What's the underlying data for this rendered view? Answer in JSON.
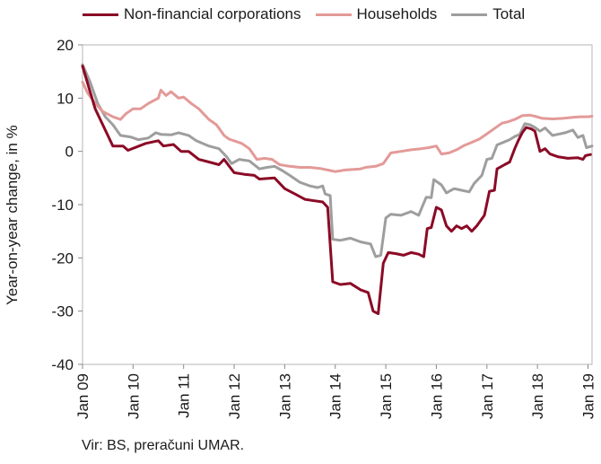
{
  "chart_data": {
    "type": "line",
    "title": "",
    "xlabel": "",
    "ylabel": "Year-on-year change, in %",
    "ylim": [
      -40,
      20
    ],
    "yticks": [
      20,
      10,
      0,
      -10,
      -20,
      -30,
      -40
    ],
    "xlim": [
      2009.0,
      2019.08
    ],
    "xtick_labels": [
      "Jan 09",
      "Jan 10",
      "Jan 11",
      "Jan 12",
      "Jan 13",
      "Jan 14",
      "Jan 15",
      "Jan 16",
      "Jan 17",
      "Jan 18",
      "Jan 19"
    ],
    "xtick_values": [
      2009,
      2010,
      2011,
      2012,
      2013,
      2014,
      2015,
      2016,
      2017,
      2018,
      2019
    ],
    "grid": false,
    "legend_position": "top",
    "series": [
      {
        "name": "Non-financial corporations",
        "color": "#8b0a26",
        "points": [
          [
            2009.0,
            16
          ],
          [
            2009.25,
            8
          ],
          [
            2009.5,
            3
          ],
          [
            2009.6,
            1
          ],
          [
            2009.8,
            1
          ],
          [
            2009.9,
            0.2
          ],
          [
            2010.25,
            1.5
          ],
          [
            2010.5,
            2
          ],
          [
            2010.6,
            1
          ],
          [
            2010.8,
            1.3
          ],
          [
            2010.95,
            0
          ],
          [
            2011.1,
            0
          ],
          [
            2011.3,
            -1.5
          ],
          [
            2011.5,
            -2
          ],
          [
            2011.7,
            -2.5
          ],
          [
            2011.8,
            -1.5
          ],
          [
            2012.0,
            -4
          ],
          [
            2012.2,
            -4.3
          ],
          [
            2012.4,
            -4.5
          ],
          [
            2012.5,
            -5.2
          ],
          [
            2012.8,
            -5
          ],
          [
            2012.9,
            -6
          ],
          [
            2013.0,
            -7
          ],
          [
            2013.2,
            -8
          ],
          [
            2013.4,
            -9
          ],
          [
            2013.6,
            -9.3
          ],
          [
            2013.75,
            -9.5
          ],
          [
            2013.85,
            -10.5
          ],
          [
            2013.95,
            -24.5
          ],
          [
            2014.1,
            -25
          ],
          [
            2014.3,
            -24.8
          ],
          [
            2014.5,
            -26
          ],
          [
            2014.65,
            -26.5
          ],
          [
            2014.75,
            -30
          ],
          [
            2014.85,
            -30.5
          ],
          [
            2014.95,
            -21
          ],
          [
            2015.05,
            -19
          ],
          [
            2015.2,
            -19.2
          ],
          [
            2015.35,
            -19.5
          ],
          [
            2015.5,
            -19
          ],
          [
            2015.65,
            -19.3
          ],
          [
            2015.75,
            -19.8
          ],
          [
            2015.82,
            -14.5
          ],
          [
            2015.9,
            -14.3
          ],
          [
            2016.0,
            -10.5
          ],
          [
            2016.1,
            -11
          ],
          [
            2016.2,
            -14
          ],
          [
            2016.3,
            -15
          ],
          [
            2016.4,
            -14
          ],
          [
            2016.5,
            -14.5
          ],
          [
            2016.6,
            -14
          ],
          [
            2016.7,
            -15
          ],
          [
            2016.8,
            -14
          ],
          [
            2016.95,
            -12
          ],
          [
            2017.05,
            -7.5
          ],
          [
            2017.15,
            -7.3
          ],
          [
            2017.2,
            -3.3
          ],
          [
            2017.35,
            -2.5
          ],
          [
            2017.45,
            -2
          ],
          [
            2017.55,
            0.5
          ],
          [
            2017.62,
            2
          ],
          [
            2017.7,
            3.5
          ],
          [
            2017.78,
            4.5
          ],
          [
            2017.88,
            4.2
          ],
          [
            2017.95,
            3.8
          ],
          [
            2018.05,
            0
          ],
          [
            2018.15,
            0.5
          ],
          [
            2018.25,
            -0.5
          ],
          [
            2018.4,
            -1
          ],
          [
            2018.6,
            -1.3
          ],
          [
            2018.8,
            -1.2
          ],
          [
            2018.9,
            -1.5
          ],
          [
            2018.95,
            -0.8
          ],
          [
            2019.05,
            -0.6
          ]
        ]
      },
      {
        "name": "Households",
        "color": "#e39a98",
        "points": [
          [
            2009.0,
            13
          ],
          [
            2009.1,
            11
          ],
          [
            2009.25,
            9
          ],
          [
            2009.4,
            7.5
          ],
          [
            2009.6,
            6.5
          ],
          [
            2009.75,
            6
          ],
          [
            2009.85,
            7
          ],
          [
            2010.0,
            8
          ],
          [
            2010.15,
            8
          ],
          [
            2010.3,
            9
          ],
          [
            2010.5,
            10
          ],
          [
            2010.55,
            11.5
          ],
          [
            2010.65,
            10.5
          ],
          [
            2010.75,
            11.2
          ],
          [
            2010.9,
            10
          ],
          [
            2011.0,
            10.2
          ],
          [
            2011.15,
            9
          ],
          [
            2011.3,
            8
          ],
          [
            2011.5,
            6
          ],
          [
            2011.65,
            5
          ],
          [
            2011.8,
            3
          ],
          [
            2011.9,
            2.3
          ],
          [
            2012.15,
            1.5
          ],
          [
            2012.3,
            0.5
          ],
          [
            2012.45,
            -1.5
          ],
          [
            2012.6,
            -1.3
          ],
          [
            2012.75,
            -1.5
          ],
          [
            2012.9,
            -2.5
          ],
          [
            2013.1,
            -2.8
          ],
          [
            2013.3,
            -3
          ],
          [
            2013.5,
            -3
          ],
          [
            2013.7,
            -3.2
          ],
          [
            2013.9,
            -3.6
          ],
          [
            2014.0,
            -3.8
          ],
          [
            2014.2,
            -3.5
          ],
          [
            2014.5,
            -3.3
          ],
          [
            2014.6,
            -3
          ],
          [
            2014.8,
            -2.8
          ],
          [
            2014.95,
            -2.3
          ],
          [
            2015.1,
            -0.3
          ],
          [
            2015.3,
            0
          ],
          [
            2015.5,
            0.3
          ],
          [
            2015.7,
            0.5
          ],
          [
            2015.85,
            0.7
          ],
          [
            2016.0,
            1
          ],
          [
            2016.1,
            -0.5
          ],
          [
            2016.25,
            -0.3
          ],
          [
            2016.4,
            0.3
          ],
          [
            2016.55,
            1.1
          ],
          [
            2016.7,
            1.7
          ],
          [
            2016.85,
            2.3
          ],
          [
            2017.0,
            3.3
          ],
          [
            2017.15,
            4.3
          ],
          [
            2017.3,
            5.3
          ],
          [
            2017.4,
            5.5
          ],
          [
            2017.55,
            6
          ],
          [
            2017.7,
            6.7
          ],
          [
            2017.85,
            6.8
          ],
          [
            2017.95,
            6.6
          ],
          [
            2018.1,
            6.2
          ],
          [
            2018.3,
            6.1
          ],
          [
            2018.5,
            6.2
          ],
          [
            2018.7,
            6.4
          ],
          [
            2018.85,
            6.5
          ],
          [
            2019.0,
            6.5
          ],
          [
            2019.08,
            6.6
          ]
        ]
      },
      {
        "name": "Total",
        "color": "#9e9e9e",
        "points": [
          [
            2009.0,
            16.3
          ],
          [
            2009.15,
            13
          ],
          [
            2009.3,
            9
          ],
          [
            2009.45,
            6.5
          ],
          [
            2009.6,
            5
          ],
          [
            2009.75,
            3
          ],
          [
            2009.95,
            2.7
          ],
          [
            2010.1,
            2.2
          ],
          [
            2010.3,
            2.5
          ],
          [
            2010.45,
            3.5
          ],
          [
            2010.55,
            3.2
          ],
          [
            2010.75,
            3.1
          ],
          [
            2010.9,
            3.5
          ],
          [
            2011.1,
            3
          ],
          [
            2011.25,
            2
          ],
          [
            2011.5,
            1
          ],
          [
            2011.7,
            0.5
          ],
          [
            2011.85,
            -1
          ],
          [
            2011.95,
            -2.3
          ],
          [
            2012.1,
            -1.5
          ],
          [
            2012.3,
            -1.8
          ],
          [
            2012.5,
            -3.3
          ],
          [
            2012.65,
            -3
          ],
          [
            2012.8,
            -2.8
          ],
          [
            2012.95,
            -3.6
          ],
          [
            2013.1,
            -4.5
          ],
          [
            2013.3,
            -5.8
          ],
          [
            2013.5,
            -6.5
          ],
          [
            2013.65,
            -6.8
          ],
          [
            2013.75,
            -6.5
          ],
          [
            2013.8,
            -8
          ],
          [
            2013.9,
            -8.3
          ],
          [
            2013.95,
            -16.5
          ],
          [
            2014.1,
            -16.7
          ],
          [
            2014.3,
            -16.3
          ],
          [
            2014.5,
            -17
          ],
          [
            2014.7,
            -17.4
          ],
          [
            2014.8,
            -19.8
          ],
          [
            2014.9,
            -19.5
          ],
          [
            2015.0,
            -12.5
          ],
          [
            2015.1,
            -11.8
          ],
          [
            2015.3,
            -12
          ],
          [
            2015.5,
            -11.3
          ],
          [
            2015.65,
            -12
          ],
          [
            2015.8,
            -8.6
          ],
          [
            2015.9,
            -8.7
          ],
          [
            2015.95,
            -5.3
          ],
          [
            2016.1,
            -6.3
          ],
          [
            2016.2,
            -7.8
          ],
          [
            2016.35,
            -7
          ],
          [
            2016.5,
            -7.3
          ],
          [
            2016.65,
            -7.6
          ],
          [
            2016.75,
            -6
          ],
          [
            2016.9,
            -4.5
          ],
          [
            2017.0,
            -1.5
          ],
          [
            2017.1,
            -1.3
          ],
          [
            2017.2,
            1.2
          ],
          [
            2017.35,
            1.8
          ],
          [
            2017.45,
            2.2
          ],
          [
            2017.55,
            2.8
          ],
          [
            2017.65,
            3.2
          ],
          [
            2017.75,
            5.2
          ],
          [
            2017.85,
            5
          ],
          [
            2017.95,
            4.5
          ],
          [
            2018.05,
            3.8
          ],
          [
            2018.15,
            4.4
          ],
          [
            2018.3,
            3
          ],
          [
            2018.4,
            3.2
          ],
          [
            2018.55,
            3.5
          ],
          [
            2018.7,
            4
          ],
          [
            2018.8,
            2.6
          ],
          [
            2018.9,
            3
          ],
          [
            2018.97,
            0.7
          ],
          [
            2019.08,
            1
          ]
        ]
      }
    ],
    "source": "Vir: BS, preračuni UMAR."
  }
}
